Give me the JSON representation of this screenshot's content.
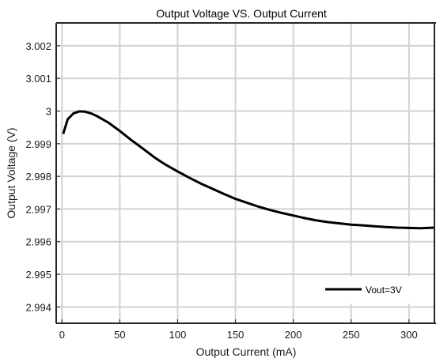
{
  "chart_data": {
    "type": "line",
    "title": "Output Voltage VS. Output Current",
    "xlabel": "Output Current (mA)",
    "ylabel": "Output Voltage (V)",
    "xlim": [
      -5,
      322
    ],
    "ylim": [
      2.9935,
      3.0027
    ],
    "xticks": [
      0,
      50,
      100,
      150,
      200,
      250,
      300
    ],
    "xtick_labels": [
      "0",
      "50",
      "100",
      "150",
      "200",
      "250",
      "300"
    ],
    "yticks": [
      2.994,
      2.995,
      2.996,
      2.997,
      2.998,
      2.999,
      3.0,
      3.001,
      3.002
    ],
    "ytick_labels": [
      "2.994",
      "2.995",
      "2.996",
      "2.997",
      "2.998",
      "2.999",
      "3",
      "3.001",
      "3.002"
    ],
    "grid": true,
    "legend_position": "bottom-right",
    "series": [
      {
        "name": "Vout=3V",
        "color": "#000000",
        "x": [
          1,
          5,
          10,
          15,
          20,
          25,
          30,
          40,
          50,
          60,
          70,
          80,
          90,
          100,
          110,
          120,
          130,
          140,
          150,
          160,
          170,
          180,
          190,
          200,
          210,
          220,
          230,
          240,
          250,
          260,
          270,
          280,
          290,
          300,
          310,
          322
        ],
        "y": [
          2.9993,
          2.99975,
          2.99993,
          2.99999,
          2.99998,
          2.99993,
          2.99985,
          2.99965,
          2.99939,
          2.99911,
          2.99885,
          2.99858,
          2.99835,
          2.99815,
          2.99796,
          2.99778,
          2.99762,
          2.99746,
          2.99731,
          2.99719,
          2.99707,
          2.99697,
          2.99688,
          2.9968,
          2.99672,
          2.99665,
          2.9966,
          2.99656,
          2.99652,
          2.9965,
          2.99647,
          2.99645,
          2.99643,
          2.99642,
          2.99641,
          2.99643
        ]
      }
    ]
  }
}
